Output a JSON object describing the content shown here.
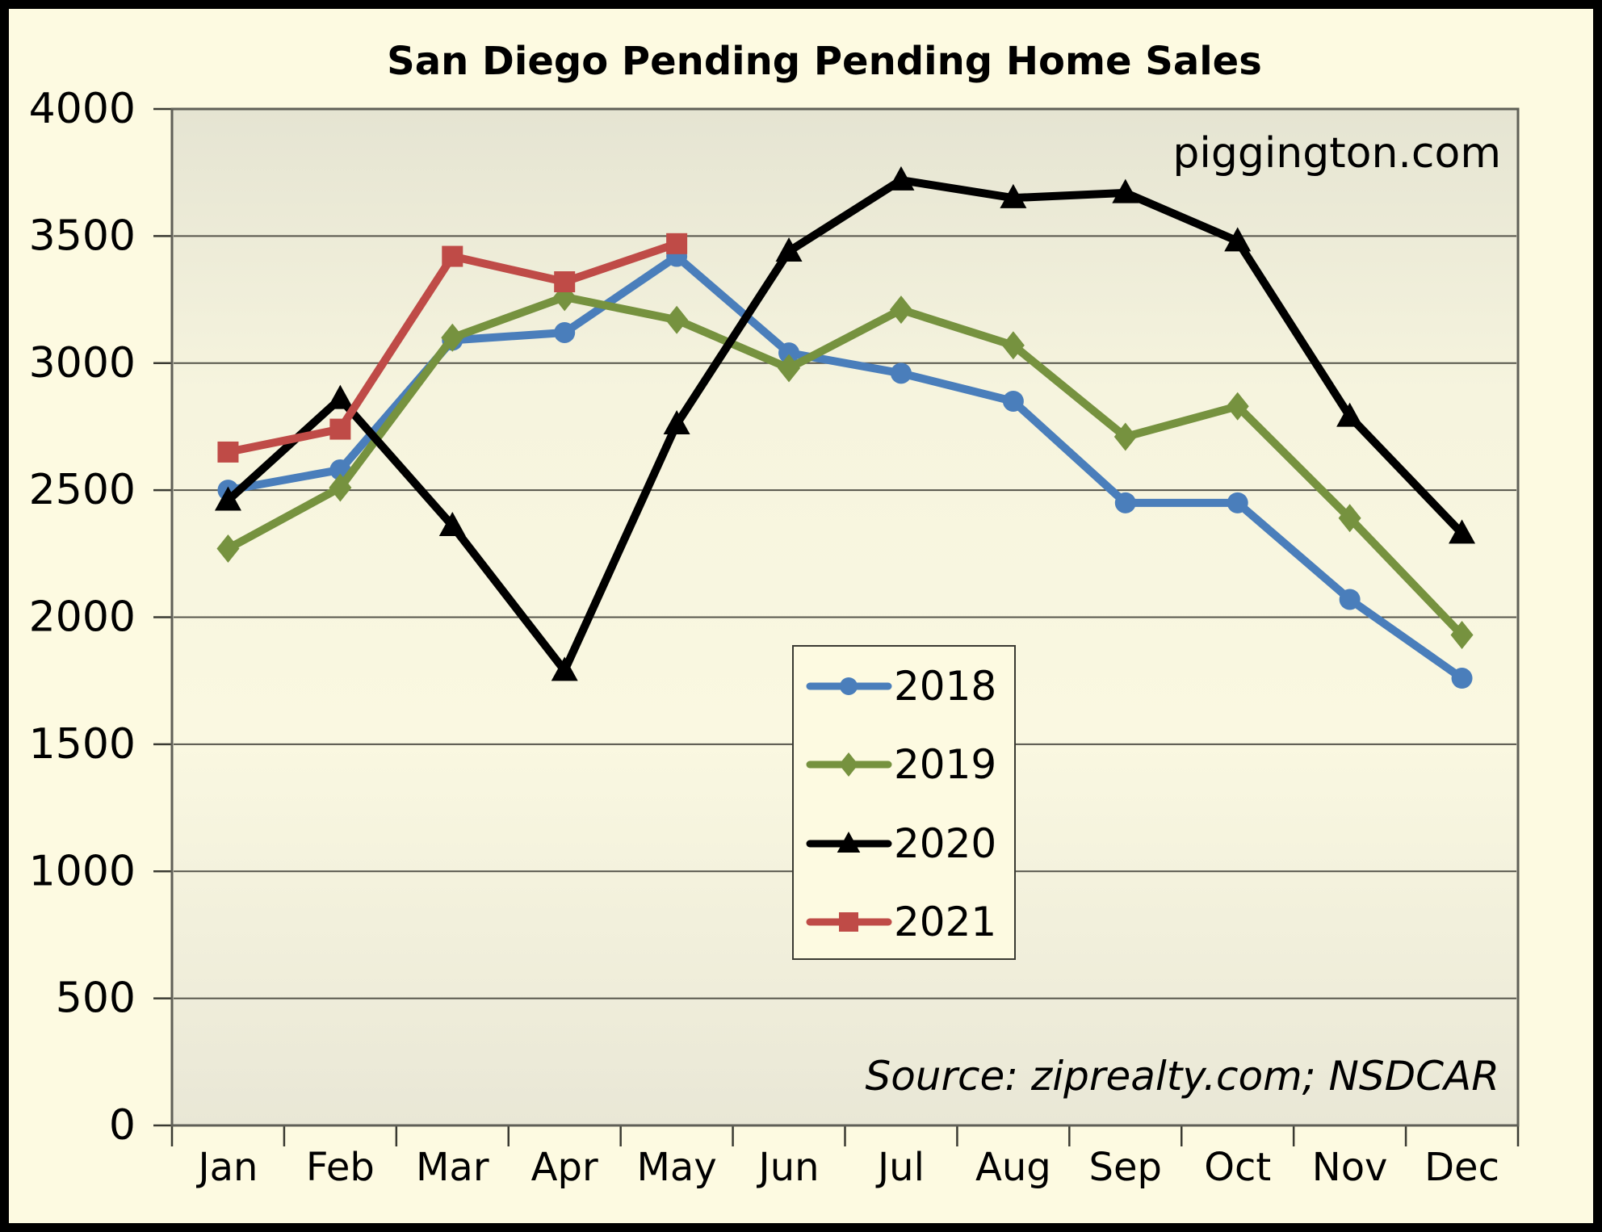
{
  "chart_data": {
    "type": "line",
    "title": "San Diego Pending Pending Home Sales",
    "watermark": "piggington.com",
    "source": "Source: ziprealty.com; NSDCAR",
    "categories": [
      "Jan",
      "Feb",
      "Mar",
      "Apr",
      "May",
      "Jun",
      "Jul",
      "Aug",
      "Sep",
      "Oct",
      "Nov",
      "Dec"
    ],
    "series": [
      {
        "name": "2018",
        "color": "#4A7EBB",
        "marker": "circle",
        "values": [
          2500,
          2580,
          3090,
          3120,
          3420,
          3040,
          2960,
          2850,
          2450,
          2450,
          2070,
          1760
        ]
      },
      {
        "name": "2019",
        "color": "#76923F",
        "marker": "diamond",
        "values": [
          2270,
          2510,
          3100,
          3260,
          3170,
          2980,
          3210,
          3070,
          2710,
          2830,
          2390,
          1930
        ]
      },
      {
        "name": "2020",
        "color": "#000000",
        "marker": "triangle",
        "values": [
          2460,
          2860,
          2360,
          1790,
          2760,
          3440,
          3720,
          3650,
          3670,
          3480,
          2790,
          2330
        ]
      },
      {
        "name": "2021",
        "color": "#BF4B47",
        "marker": "square",
        "values": [
          2650,
          2740,
          3420,
          3320,
          3470,
          null,
          null,
          null,
          null,
          null,
          null,
          null
        ]
      }
    ],
    "ylim": [
      0,
      4000
    ],
    "ytick_step": 500,
    "ytick_labels": [
      "0",
      "500",
      "1000",
      "1500",
      "2000",
      "2500",
      "3000",
      "3500",
      "4000"
    ],
    "grid": true,
    "legend_position": "inside-center",
    "colors": {
      "frame_border": "#000000",
      "chart_background": "#FDFAE1",
      "plot_gradient_top": "#E5E4D2",
      "plot_gradient_upper_mid": "#F6F4DE",
      "plot_gradient_lower_mid": "#FAF8E1",
      "plot_gradient_bottom": "#E9E7D6",
      "gridline": "#55544A",
      "plot_border": "#5F5F57",
      "tick": "#3A3A32",
      "watermark": "#7278B2",
      "source": "#808080",
      "legend_background": "#FDFAE1",
      "legend_border": "#3A3A32"
    }
  }
}
